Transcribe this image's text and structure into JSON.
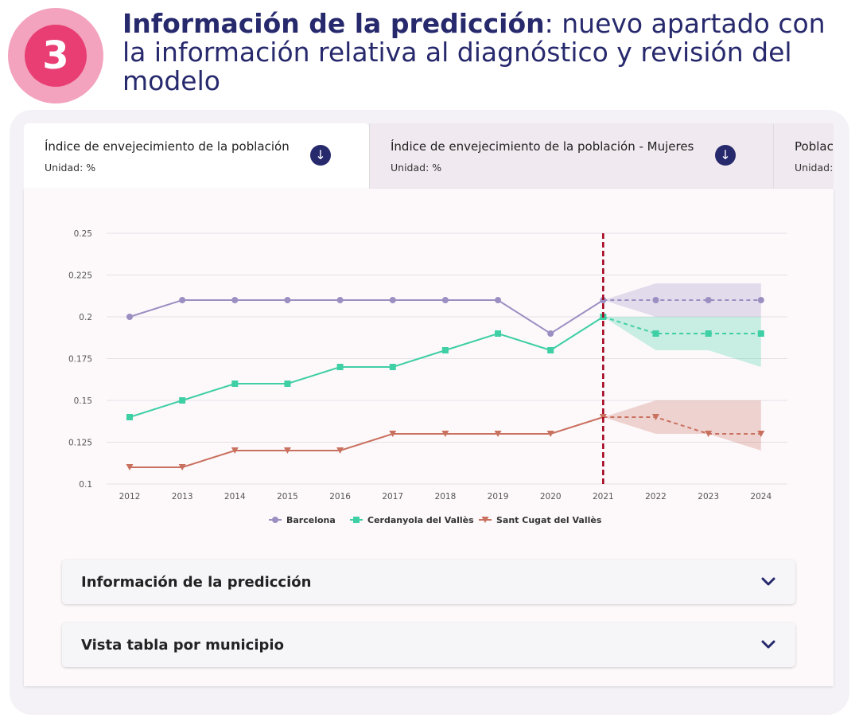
{
  "header": {
    "step_number": "3",
    "title_bold": "Información de la predicción",
    "title_rest": ": nuevo apartado con la información relativa al diagnóstico y revisión del modelo"
  },
  "tabs": [
    {
      "title": "Índice de envejecimiento de la población",
      "unit": "Unidad: %",
      "active": true,
      "icon": "download-icon"
    },
    {
      "title": "Índice de envejecimiento de la población - Mujeres",
      "unit": "Unidad: %",
      "active": false,
      "icon": "download-icon"
    },
    {
      "title": "Poblac",
      "unit": "Unidad:",
      "active": false
    }
  ],
  "colors": {
    "brand_dark": "#27296d",
    "accent_pink": "#e83e74",
    "barcelona": "#9b8fc2",
    "cerdanyola": "#3fcfa5",
    "santcugat": "#c9715f",
    "forecast_divider": "#a3001b"
  },
  "chart_data": {
    "type": "line",
    "x": [
      "2012",
      "2013",
      "2014",
      "2015",
      "2016",
      "2017",
      "2018",
      "2019",
      "2020",
      "2021",
      "2022",
      "2023",
      "2024"
    ],
    "yticks": [
      "0.1",
      "0.125",
      "0.15",
      "0.175",
      "0.2",
      "0.225",
      "0.25"
    ],
    "ylim": [
      0.1,
      0.25
    ],
    "forecast_start": "2021",
    "grid": true,
    "legend_position": "bottom",
    "series": [
      {
        "name": "Barcelona",
        "marker": "circle",
        "values": [
          0.2,
          0.21,
          0.21,
          0.21,
          0.21,
          0.21,
          0.21,
          0.21,
          0.19,
          0.21,
          0.21,
          0.21,
          0.21
        ],
        "band_years": [
          "2021",
          "2022",
          "2023",
          "2024"
        ],
        "band_lower": [
          0.21,
          0.2,
          0.2,
          0.2
        ],
        "band_upper": [
          0.21,
          0.22,
          0.22,
          0.22
        ]
      },
      {
        "name": "Cerdanyola del Vallès",
        "marker": "square",
        "values": [
          0.14,
          0.15,
          0.16,
          0.16,
          0.17,
          0.17,
          0.18,
          0.19,
          0.18,
          0.2,
          0.19,
          0.19,
          0.19
        ],
        "band_years": [
          "2021",
          "2022",
          "2023",
          "2024"
        ],
        "band_lower": [
          0.2,
          0.18,
          0.18,
          0.17
        ],
        "band_upper": [
          0.2,
          0.2,
          0.2,
          0.2
        ]
      },
      {
        "name": "Sant Cugat del Vallès",
        "marker": "triangle-down",
        "values": [
          0.11,
          0.11,
          0.12,
          0.12,
          0.12,
          0.13,
          0.13,
          0.13,
          0.13,
          0.14,
          0.14,
          0.13,
          0.13
        ],
        "band_years": [
          "2021",
          "2022",
          "2023",
          "2024"
        ],
        "band_lower": [
          0.14,
          0.13,
          0.13,
          0.12
        ],
        "band_upper": [
          0.14,
          0.15,
          0.15,
          0.15
        ]
      }
    ]
  },
  "accordions": [
    {
      "label": "Información de la predicción",
      "icon": "chevron-down-icon"
    },
    {
      "label": "Vista tabla por municipio",
      "icon": "chevron-down-icon"
    }
  ]
}
